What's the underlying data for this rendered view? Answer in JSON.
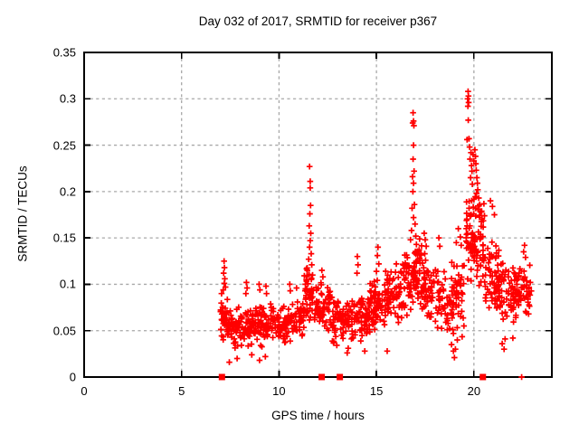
{
  "chart_data": {
    "type": "scatter",
    "title": "Day 032 of 2017, SRMTID for receiver p367",
    "xlabel": "GPS time / hours",
    "ylabel": "SRMTID / TECUs",
    "xlim": [
      0,
      24
    ],
    "ylim": [
      0,
      0.35
    ],
    "grid": true,
    "legend": "none",
    "marker": "plus",
    "marker_color": "#ff0000",
    "grid_color": "#a8a8a8",
    "frame_color": "#000000",
    "background_color": "#ffffff",
    "xticks": [
      {
        "v": 0,
        "label": "0"
      },
      {
        "v": 5,
        "label": "5"
      },
      {
        "v": 10,
        "label": "10"
      },
      {
        "v": 15,
        "label": "15"
      },
      {
        "v": 20,
        "label": "20"
      }
    ],
    "yticks": [
      {
        "v": 0,
        "label": "0"
      },
      {
        "v": 0.05,
        "label": "0.05"
      },
      {
        "v": 0.1,
        "label": "0.1"
      },
      {
        "v": 0.15,
        "label": "0.15"
      },
      {
        "v": 0.2,
        "label": "0.2"
      },
      {
        "v": 0.25,
        "label": "0.25"
      },
      {
        "v": 0.3,
        "label": "0.3"
      },
      {
        "v": 0.35,
        "label": "0.35"
      }
    ],
    "data_time_range_hours": [
      7.0,
      22.95
    ],
    "dense_bands": [
      {
        "x_start": 7.0,
        "x_end": 7.5,
        "points": 42,
        "y_center_start": 0.062,
        "y_center_end": 0.058,
        "y_half_spread": 0.024
      },
      {
        "x_start": 7.5,
        "x_end": 9.6,
        "points": 155,
        "y_center_start": 0.053,
        "y_center_end": 0.056,
        "y_half_spread": 0.021
      },
      {
        "x_start": 9.6,
        "x_end": 11.3,
        "points": 115,
        "y_center_start": 0.056,
        "y_center_end": 0.061,
        "y_half_spread": 0.022
      },
      {
        "x_start": 11.3,
        "x_end": 11.8,
        "points": 42,
        "y_center_start": 0.088,
        "y_center_end": 0.08,
        "y_half_spread": 0.03
      },
      {
        "x_start": 11.8,
        "x_end": 12.65,
        "points": 62,
        "y_center_start": 0.079,
        "y_center_end": 0.071,
        "y_half_spread": 0.026
      },
      {
        "x_start": 12.65,
        "x_end": 14.65,
        "points": 150,
        "y_center_start": 0.062,
        "y_center_end": 0.068,
        "y_half_spread": 0.027
      },
      {
        "x_start": 14.65,
        "x_end": 16.35,
        "points": 130,
        "y_center_start": 0.077,
        "y_center_end": 0.089,
        "y_half_spread": 0.028
      },
      {
        "x_start": 16.35,
        "x_end": 17.35,
        "points": 88,
        "y_center_start": 0.104,
        "y_center_end": 0.112,
        "y_half_spread": 0.038
      },
      {
        "x_start": 17.35,
        "x_end": 18.65,
        "points": 92,
        "y_center_start": 0.096,
        "y_center_end": 0.079,
        "y_half_spread": 0.032
      },
      {
        "x_start": 18.65,
        "x_end": 19.55,
        "points": 62,
        "y_center_start": 0.072,
        "y_center_end": 0.092,
        "y_half_spread": 0.042
      },
      {
        "x_start": 19.55,
        "x_end": 20.55,
        "points": 105,
        "y_center_start": 0.152,
        "y_center_end": 0.146,
        "y_half_spread": 0.05
      },
      {
        "x_start": 20.55,
        "x_end": 21.65,
        "points": 88,
        "y_center_start": 0.113,
        "y_center_end": 0.096,
        "y_half_spread": 0.037
      },
      {
        "x_start": 21.65,
        "x_end": 22.95,
        "points": 92,
        "y_center_start": 0.088,
        "y_center_end": 0.09,
        "y_half_spread": 0.031
      }
    ],
    "outlier_points": [
      [
        7.18,
        0.125
      ],
      [
        7.2,
        0.118
      ],
      [
        7.16,
        0.112
      ],
      [
        7.22,
        0.106
      ],
      [
        7.19,
        0.101
      ],
      [
        7.25,
        0.097
      ],
      [
        7.14,
        0.094
      ],
      [
        7.05,
        0.09
      ],
      [
        7.45,
        0.016
      ],
      [
        7.85,
        0.02
      ],
      [
        8.33,
        0.102
      ],
      [
        8.36,
        0.096
      ],
      [
        8.3,
        0.09
      ],
      [
        8.6,
        0.024
      ],
      [
        8.98,
        0.1
      ],
      [
        9.02,
        0.094
      ],
      [
        9.0,
        0.018
      ],
      [
        9.33,
        0.098
      ],
      [
        9.36,
        0.09
      ],
      [
        9.3,
        0.022
      ],
      [
        10.55,
        0.1
      ],
      [
        10.58,
        0.093
      ],
      [
        10.9,
        0.096
      ],
      [
        11.57,
        0.227
      ],
      [
        11.6,
        0.211
      ],
      [
        11.6,
        0.204
      ],
      [
        11.62,
        0.185
      ],
      [
        11.58,
        0.176
      ],
      [
        11.55,
        0.163
      ],
      [
        11.63,
        0.155
      ],
      [
        11.6,
        0.147
      ],
      [
        11.57,
        0.14
      ],
      [
        11.65,
        0.133
      ],
      [
        11.52,
        0.127
      ],
      [
        11.68,
        0.121
      ],
      [
        11.45,
        0.115
      ],
      [
        11.72,
        0.11
      ],
      [
        11.4,
        0.105
      ],
      [
        11.35,
        0.1
      ],
      [
        12.2,
        0.115
      ],
      [
        12.25,
        0.108
      ],
      [
        13.5,
        0.026
      ],
      [
        13.55,
        0.031
      ],
      [
        14.4,
        0.028
      ],
      [
        14.02,
        0.13
      ],
      [
        14.05,
        0.121
      ],
      [
        14.0,
        0.112
      ],
      [
        15.08,
        0.14
      ],
      [
        15.05,
        0.131
      ],
      [
        15.12,
        0.122
      ],
      [
        15.0,
        0.114
      ],
      [
        15.55,
        0.028
      ],
      [
        16.02,
        0.122
      ],
      [
        15.98,
        0.113
      ],
      [
        16.88,
        0.285
      ],
      [
        16.9,
        0.276
      ],
      [
        16.86,
        0.274
      ],
      [
        16.92,
        0.271
      ],
      [
        16.9,
        0.25
      ],
      [
        16.88,
        0.235
      ],
      [
        16.93,
        0.222
      ],
      [
        16.85,
        0.216
      ],
      [
        16.9,
        0.209
      ],
      [
        16.87,
        0.2
      ],
      [
        16.95,
        0.186
      ],
      [
        16.83,
        0.182
      ],
      [
        16.9,
        0.172
      ],
      [
        16.98,
        0.165
      ],
      [
        16.8,
        0.158
      ],
      [
        17.02,
        0.152
      ],
      [
        16.75,
        0.148
      ],
      [
        17.05,
        0.143
      ],
      [
        17.45,
        0.155
      ],
      [
        17.5,
        0.148
      ],
      [
        17.55,
        0.141
      ],
      [
        17.48,
        0.133
      ],
      [
        17.52,
        0.126
      ],
      [
        18.2,
        0.15
      ],
      [
        18.25,
        0.141
      ],
      [
        18.85,
        0.035
      ],
      [
        18.95,
        0.028
      ],
      [
        19.0,
        0.021
      ],
      [
        19.05,
        0.03
      ],
      [
        19.15,
        0.04
      ],
      [
        19.1,
        0.145
      ],
      [
        19.2,
        0.16
      ],
      [
        19.3,
        0.151
      ],
      [
        19.35,
        0.142
      ],
      [
        19.7,
        0.308
      ],
      [
        19.72,
        0.303
      ],
      [
        19.68,
        0.3
      ],
      [
        19.73,
        0.296
      ],
      [
        19.69,
        0.292
      ],
      [
        19.71,
        0.277
      ],
      [
        19.75,
        0.257
      ],
      [
        19.65,
        0.256
      ],
      [
        19.78,
        0.248
      ],
      [
        19.85,
        0.242
      ],
      [
        19.8,
        0.235
      ],
      [
        19.88,
        0.228
      ],
      [
        19.9,
        0.222
      ],
      [
        19.83,
        0.215
      ],
      [
        19.92,
        0.208
      ],
      [
        19.95,
        0.24
      ],
      [
        20.0,
        0.233
      ],
      [
        20.05,
        0.245
      ],
      [
        20.08,
        0.238
      ],
      [
        20.1,
        0.23
      ],
      [
        20.12,
        0.223
      ],
      [
        20.15,
        0.215
      ],
      [
        20.18,
        0.209
      ],
      [
        20.2,
        0.202
      ],
      [
        20.25,
        0.193
      ],
      [
        20.3,
        0.186
      ],
      [
        20.35,
        0.178
      ],
      [
        20.85,
        0.19
      ],
      [
        20.95,
        0.184
      ],
      [
        21.05,
        0.175
      ],
      [
        21.45,
        0.036
      ],
      [
        21.55,
        0.03
      ],
      [
        21.6,
        0.041
      ],
      [
        22.0,
        0.042
      ],
      [
        22.6,
        0.142
      ],
      [
        22.55,
        0.135
      ],
      [
        22.65,
        0.129
      ]
    ],
    "zero_square_markers_x": [
      7.07,
      12.19,
      13.12,
      20.46
    ],
    "zero_plus_markers_x": [
      22.45
    ]
  }
}
